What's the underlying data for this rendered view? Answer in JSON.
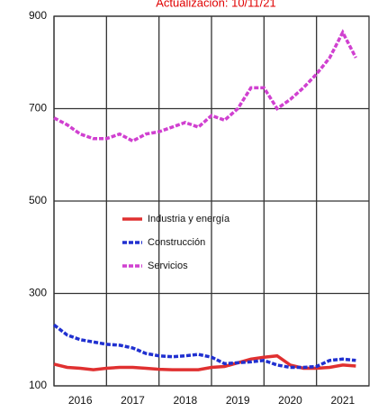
{
  "chart_data": {
    "type": "line",
    "title": "Actualización: 10/11/21",
    "x": [
      2016,
      2016.25,
      2016.5,
      2016.75,
      2017,
      2017.25,
      2017.5,
      2017.75,
      2018,
      2018.25,
      2018.5,
      2018.75,
      2019,
      2019.25,
      2019.5,
      2019.75,
      2020,
      2020.25,
      2020.5,
      2020.75,
      2021,
      2021.25,
      2021.5,
      2021.75
    ],
    "xlim": [
      2016,
      2022
    ],
    "xticks": [
      {
        "value": 2016.5,
        "label": "2016"
      },
      {
        "value": 2017.5,
        "label": "2017"
      },
      {
        "value": 2018.5,
        "label": "2018"
      },
      {
        "value": 2019.5,
        "label": "2019"
      },
      {
        "value": 2020.5,
        "label": "2020"
      },
      {
        "value": 2021.5,
        "label": "2021"
      }
    ],
    "ylim": [
      100,
      900
    ],
    "yticks": [
      100,
      300,
      500,
      700,
      900
    ],
    "grid": true,
    "series": [
      {
        "name": "Industria y energía",
        "color": "#e03030",
        "values": [
          147,
          140,
          138,
          135,
          138,
          140,
          140,
          138,
          136,
          135,
          135,
          135,
          140,
          142,
          150,
          158,
          162,
          165,
          145,
          138,
          138,
          140,
          145,
          143
        ]
      },
      {
        "name": "Construcción",
        "color": "#2030d0",
        "values": [
          232,
          210,
          200,
          195,
          190,
          188,
          182,
          170,
          165,
          163,
          165,
          168,
          162,
          148,
          150,
          152,
          155,
          145,
          140,
          140,
          142,
          155,
          158,
          155
        ]
      },
      {
        "name": "Servicios",
        "color": "#d040d0",
        "values": [
          680,
          665,
          645,
          635,
          635,
          645,
          630,
          645,
          650,
          660,
          670,
          660,
          685,
          675,
          700,
          745,
          745,
          700,
          720,
          745,
          775,
          810,
          865,
          810
        ]
      }
    ]
  }
}
